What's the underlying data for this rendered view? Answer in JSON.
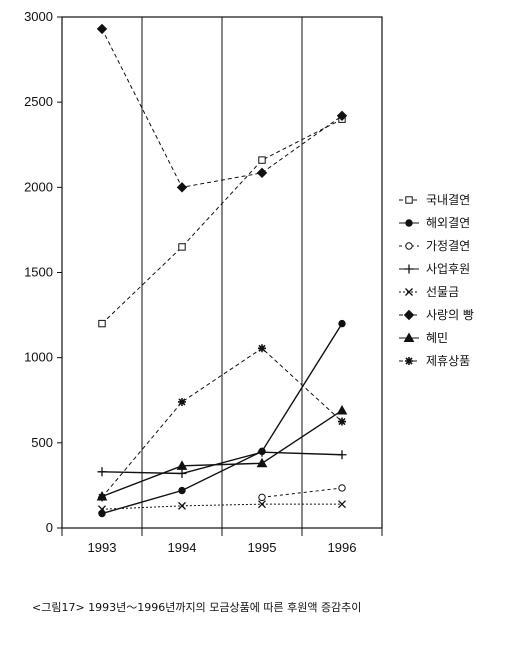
{
  "chart_data": {
    "type": "line",
    "categories": [
      "1993",
      "1994",
      "1995",
      "1996"
    ],
    "ylim": [
      0,
      3000
    ],
    "yticks": [
      0,
      500,
      1000,
      1500,
      2000,
      2500,
      3000
    ],
    "grid": "vertical-lines",
    "legend_position": "right",
    "series": [
      {
        "name": "국내결연",
        "marker": "square-open",
        "dash": "4,3",
        "values": [
          1200,
          1650,
          2160,
          2400
        ]
      },
      {
        "name": "해외결연",
        "marker": "circle-filled",
        "dash": "",
        "values": [
          85,
          220,
          450,
          1200
        ]
      },
      {
        "name": "가정결연",
        "marker": "circle-open",
        "dash": "3,3",
        "values": [
          null,
          null,
          180,
          235
        ]
      },
      {
        "name": "사업후원",
        "marker": "plus",
        "dash": "",
        "values": [
          330,
          320,
          445,
          430
        ]
      },
      {
        "name": "선물금",
        "marker": "x",
        "dash": "2,2",
        "values": [
          110,
          130,
          140,
          140
        ]
      },
      {
        "name": "사랑의 빵",
        "marker": "diamond-filled",
        "dash": "4,3",
        "values": [
          2930,
          2000,
          2085,
          2420
        ]
      },
      {
        "name": "혜민",
        "marker": "triangle-filled",
        "dash": "",
        "values": [
          185,
          365,
          380,
          690
        ]
      },
      {
        "name": "제휴상품",
        "marker": "asterisk",
        "dash": "4,3",
        "values": [
          180,
          740,
          1055,
          625
        ]
      }
    ]
  },
  "caption": "<그림17> 1993년～1996년까지의 모금상품에 따른 후원액 증감추이"
}
